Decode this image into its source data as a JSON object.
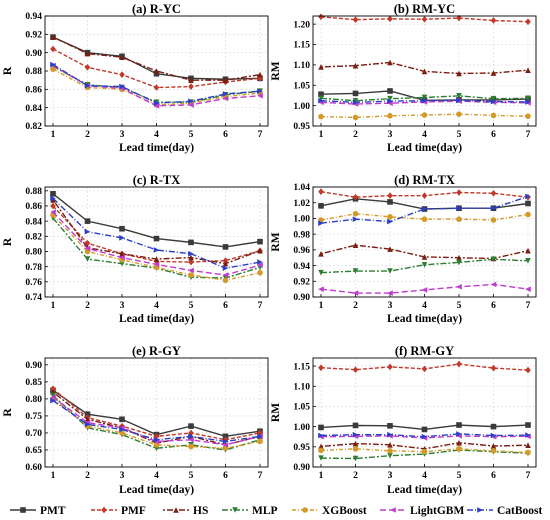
{
  "legend": [
    {
      "name": "PMT",
      "color": "#3a3a3a",
      "dash": "",
      "marker": "square"
    },
    {
      "name": "PMF",
      "color": "#c0392b",
      "dash": "4,2",
      "marker": "diamond"
    },
    {
      "name": "HS",
      "color": "#7b1e12",
      "dash": "2,2,6,2",
      "marker": "triangle"
    },
    {
      "name": "MLP",
      "color": "#2e7d32",
      "dash": "6,2,2,2",
      "marker": "triangle-down"
    },
    {
      "name": "XGBoost",
      "color": "#d39a2a",
      "dash": "4,2,1,2",
      "marker": "circle"
    },
    {
      "name": "LightGBM",
      "color": "#c03ccf",
      "dash": "6,3",
      "marker": "triangle-left"
    },
    {
      "name": "CatBoost",
      "color": "#2b3fc7",
      "dash": "6,2,1,2",
      "marker": "triangle-right"
    }
  ],
  "chart_data": [
    {
      "type": "line",
      "title": "(a) R-YC",
      "xlabel": "Lead time(day)",
      "ylabel": "R",
      "x": [
        1,
        2,
        3,
        4,
        5,
        6,
        7
      ],
      "ylim": [
        0.82,
        0.94
      ],
      "yticks": [
        "0.82",
        "0.84",
        "0.86",
        "0.88",
        "0.90",
        "0.92",
        "0.94"
      ],
      "series": [
        {
          "name": "PMT",
          "values": [
            0.917,
            0.9,
            0.896,
            0.877,
            0.872,
            0.871,
            0.872
          ]
        },
        {
          "name": "PMF",
          "values": [
            0.904,
            0.884,
            0.876,
            0.862,
            0.863,
            0.868,
            0.872
          ]
        },
        {
          "name": "HS",
          "values": [
            0.917,
            0.899,
            0.895,
            0.88,
            0.87,
            0.87,
            0.876
          ]
        },
        {
          "name": "MLP",
          "values": [
            0.885,
            0.865,
            0.862,
            0.846,
            0.846,
            0.854,
            0.858
          ]
        },
        {
          "name": "XGBoost",
          "values": [
            0.882,
            0.862,
            0.86,
            0.843,
            0.845,
            0.852,
            0.856
          ]
        },
        {
          "name": "LightGBM",
          "values": [
            0.886,
            0.864,
            0.861,
            0.842,
            0.843,
            0.85,
            0.853
          ]
        },
        {
          "name": "CatBoost",
          "values": [
            0.887,
            0.864,
            0.863,
            0.845,
            0.847,
            0.855,
            0.858
          ]
        }
      ]
    },
    {
      "type": "line",
      "title": "(b) RM-YC",
      "xlabel": "Lead time(day)",
      "ylabel": "RM",
      "x": [
        1,
        2,
        3,
        4,
        5,
        6,
        7
      ],
      "ylim": [
        0.95,
        1.22
      ],
      "yticks": [
        "0.95",
        "1.00",
        "1.05",
        "1.10",
        "1.15",
        "1.20"
      ],
      "series": [
        {
          "name": "PMT",
          "values": [
            1.028,
            1.03,
            1.036,
            1.013,
            1.014,
            1.014,
            1.016
          ]
        },
        {
          "name": "PMF",
          "values": [
            1.218,
            1.211,
            1.213,
            1.212,
            1.215,
            1.209,
            1.206
          ]
        },
        {
          "name": "HS",
          "values": [
            1.095,
            1.098,
            1.106,
            1.084,
            1.079,
            1.08,
            1.087
          ]
        },
        {
          "name": "MLP",
          "values": [
            1.018,
            1.012,
            1.017,
            1.02,
            1.024,
            1.017,
            1.018
          ]
        },
        {
          "name": "XGBoost",
          "values": [
            0.973,
            0.971,
            0.975,
            0.977,
            0.979,
            0.976,
            0.974
          ]
        },
        {
          "name": "LightGBM",
          "values": [
            1.008,
            1.004,
            1.006,
            1.009,
            1.011,
            1.008,
            1.007
          ]
        },
        {
          "name": "CatBoost",
          "values": [
            1.012,
            1.008,
            1.011,
            1.012,
            1.013,
            1.01,
            1.009
          ]
        }
      ]
    },
    {
      "type": "line",
      "title": "(c) R-TX",
      "xlabel": "Lead time(day)",
      "ylabel": "R",
      "x": [
        1,
        2,
        3,
        4,
        5,
        6,
        7
      ],
      "ylim": [
        0.74,
        0.885
      ],
      "yticks": [
        "0.74",
        "0.76",
        "0.78",
        "0.80",
        "0.82",
        "0.84",
        "0.86",
        "0.88"
      ],
      "series": [
        {
          "name": "PMT",
          "values": [
            0.876,
            0.84,
            0.83,
            0.817,
            0.812,
            0.806,
            0.813
          ]
        },
        {
          "name": "PMF",
          "values": [
            0.86,
            0.811,
            0.797,
            0.787,
            0.786,
            0.788,
            0.801
          ]
        },
        {
          "name": "HS",
          "values": [
            0.868,
            0.805,
            0.797,
            0.79,
            0.792,
            0.784,
            0.801
          ]
        },
        {
          "name": "MLP",
          "values": [
            0.844,
            0.79,
            0.784,
            0.778,
            0.766,
            0.765,
            0.779
          ]
        },
        {
          "name": "XGBoost",
          "values": [
            0.848,
            0.8,
            0.789,
            0.779,
            0.769,
            0.762,
            0.772
          ]
        },
        {
          "name": "LightGBM",
          "values": [
            0.852,
            0.804,
            0.792,
            0.783,
            0.775,
            0.769,
            0.782
          ]
        },
        {
          "name": "CatBoost",
          "values": [
            0.87,
            0.826,
            0.818,
            0.802,
            0.797,
            0.778,
            0.786
          ]
        }
      ]
    },
    {
      "type": "line",
      "title": "(d) RM-TX",
      "xlabel": "Lead time(day)",
      "ylabel": "RM",
      "x": [
        1,
        2,
        3,
        4,
        5,
        6,
        7
      ],
      "ylim": [
        0.9,
        1.04
      ],
      "yticks": [
        "0.90",
        "0.92",
        "0.94",
        "0.96",
        "0.98",
        "1.00",
        "1.02",
        "1.04"
      ],
      "series": [
        {
          "name": "PMT",
          "values": [
            1.016,
            1.025,
            1.021,
            1.012,
            1.013,
            1.013,
            1.019
          ]
        },
        {
          "name": "PMF",
          "values": [
            1.034,
            1.027,
            1.029,
            1.029,
            1.033,
            1.032,
            1.027
          ]
        },
        {
          "name": "HS",
          "values": [
            0.955,
            0.966,
            0.961,
            0.951,
            0.95,
            0.949,
            0.959
          ]
        },
        {
          "name": "MLP",
          "values": [
            0.931,
            0.933,
            0.933,
            0.941,
            0.944,
            0.948,
            0.946
          ]
        },
        {
          "name": "XGBoost",
          "values": [
            0.998,
            1.006,
            1.002,
            0.999,
            0.999,
            0.998,
            1.005
          ]
        },
        {
          "name": "LightGBM",
          "values": [
            0.91,
            0.905,
            0.905,
            0.909,
            0.913,
            0.916,
            0.91
          ]
        },
        {
          "name": "CatBoost",
          "values": [
            0.994,
            0.999,
            0.996,
            1.012,
            1.013,
            1.013,
            1.028
          ]
        }
      ]
    },
    {
      "type": "line",
      "title": "(e) R-GY",
      "xlabel": "Lead time(day)",
      "ylabel": "R",
      "x": [
        1,
        2,
        3,
        4,
        5,
        6,
        7
      ],
      "ylim": [
        0.6,
        0.92
      ],
      "yticks": [
        "0.60",
        "0.65",
        "0.70",
        "0.75",
        "0.80",
        "0.85",
        "0.90"
      ],
      "series": [
        {
          "name": "PMT",
          "values": [
            0.825,
            0.755,
            0.74,
            0.695,
            0.72,
            0.69,
            0.705
          ]
        },
        {
          "name": "PMF",
          "values": [
            0.83,
            0.745,
            0.72,
            0.69,
            0.7,
            0.68,
            0.7
          ]
        },
        {
          "name": "HS",
          "values": [
            0.82,
            0.74,
            0.715,
            0.67,
            0.69,
            0.665,
            0.69
          ]
        },
        {
          "name": "MLP",
          "values": [
            0.81,
            0.715,
            0.695,
            0.655,
            0.665,
            0.65,
            0.68
          ]
        },
        {
          "name": "XGBoost",
          "values": [
            0.8,
            0.72,
            0.7,
            0.665,
            0.66,
            0.655,
            0.675
          ]
        },
        {
          "name": "LightGBM",
          "values": [
            0.805,
            0.73,
            0.715,
            0.675,
            0.68,
            0.665,
            0.69
          ]
        },
        {
          "name": "CatBoost",
          "values": [
            0.795,
            0.725,
            0.71,
            0.68,
            0.69,
            0.675,
            0.69
          ]
        }
      ]
    },
    {
      "type": "line",
      "title": "(f) RM-GY",
      "xlabel": "Lead time(day)",
      "ylabel": "RM",
      "x": [
        1,
        2,
        3,
        4,
        5,
        6,
        7
      ],
      "ylim": [
        0.9,
        1.17
      ],
      "yticks": [
        "0.90",
        "0.95",
        "1.00",
        "1.05",
        "1.10",
        "1.15"
      ],
      "series": [
        {
          "name": "PMT",
          "values": [
            0.998,
            1.003,
            1.002,
            0.993,
            1.004,
            1.0,
            1.004
          ]
        },
        {
          "name": "PMF",
          "values": [
            1.146,
            1.141,
            1.148,
            1.143,
            1.155,
            1.145,
            1.14
          ]
        },
        {
          "name": "HS",
          "values": [
            0.951,
            0.958,
            0.955,
            0.945,
            0.96,
            0.952,
            0.954
          ]
        },
        {
          "name": "MLP",
          "values": [
            0.922,
            0.921,
            0.928,
            0.932,
            0.942,
            0.938,
            0.934
          ]
        },
        {
          "name": "XGBoost",
          "values": [
            0.941,
            0.945,
            0.94,
            0.938,
            0.945,
            0.94,
            0.936
          ]
        },
        {
          "name": "LightGBM",
          "values": [
            0.975,
            0.976,
            0.977,
            0.972,
            0.977,
            0.975,
            0.976
          ]
        },
        {
          "name": "CatBoost",
          "values": [
            0.978,
            0.98,
            0.98,
            0.975,
            0.982,
            0.978,
            0.979
          ]
        }
      ]
    }
  ]
}
